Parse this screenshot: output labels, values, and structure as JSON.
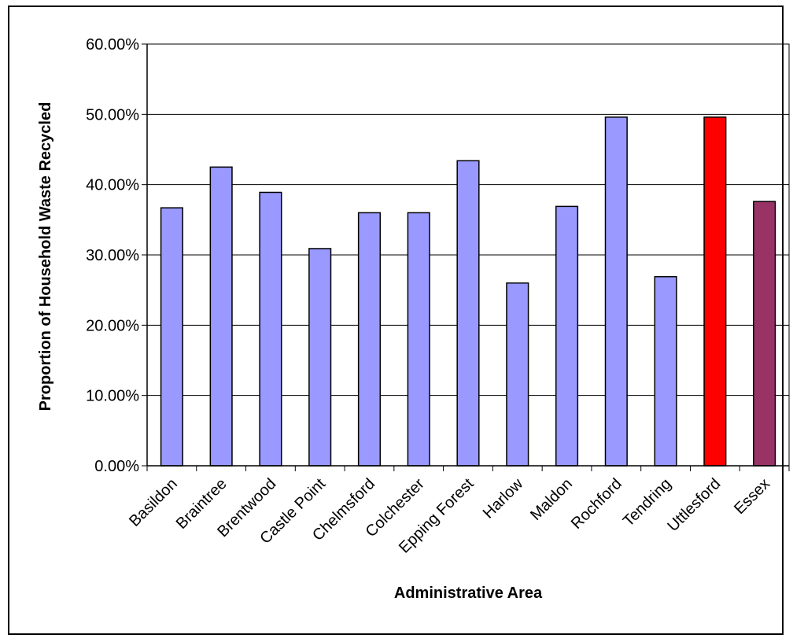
{
  "chart_data": {
    "type": "bar",
    "title": "",
    "xlabel": "Administrative Area",
    "ylabel": "Proportion of Household Waste Recycled",
    "ylim": [
      0,
      0.6
    ],
    "yticks": [
      "0.00%",
      "10.00%",
      "20.00%",
      "30.00%",
      "40.00%",
      "50.00%",
      "60.00%"
    ],
    "grid": true,
    "legend": "none",
    "categories": [
      "Basildon",
      "Braintree",
      "Brentwood",
      "Castle Point",
      "Chelmsford",
      "Colchester",
      "Epping Forest",
      "Harlow",
      "Maldon",
      "Rochford",
      "Tendring",
      "Uttlesford",
      "Essex"
    ],
    "values": [
      0.367,
      0.425,
      0.389,
      0.309,
      0.36,
      0.36,
      0.434,
      0.26,
      0.369,
      0.496,
      0.269,
      0.496,
      0.376
    ],
    "colors": [
      "#9999ff",
      "#9999ff",
      "#9999ff",
      "#9999ff",
      "#9999ff",
      "#9999ff",
      "#9999ff",
      "#9999ff",
      "#9999ff",
      "#9999ff",
      "#9999ff",
      "#ff0000",
      "#993366"
    ]
  }
}
